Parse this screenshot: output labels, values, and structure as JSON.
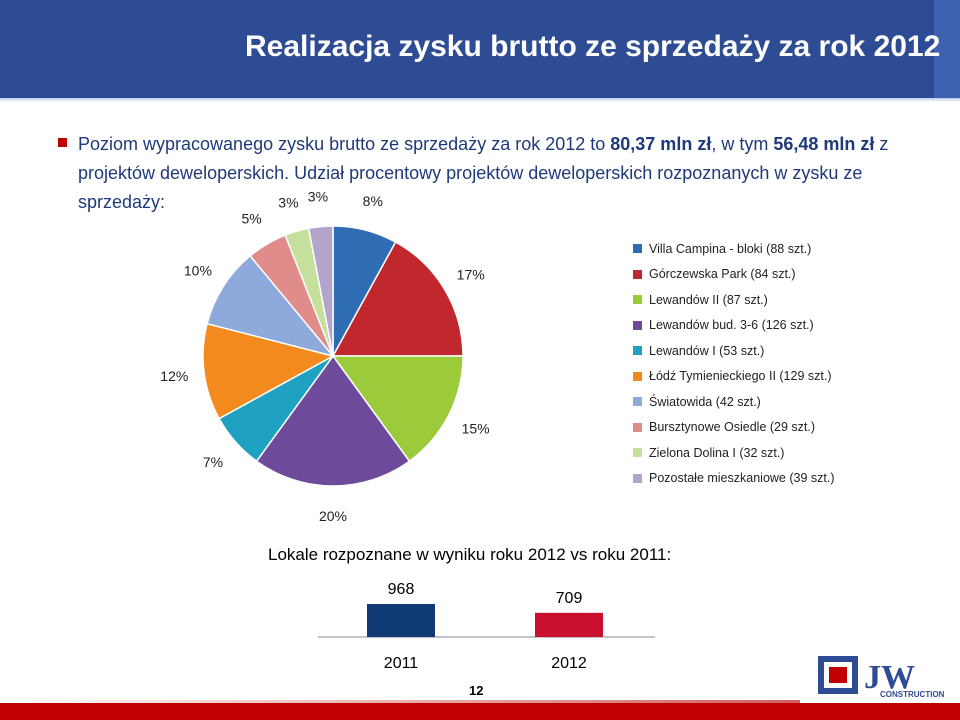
{
  "header": {
    "title": "Realizacja zysku brutto ze sprzedaży za rok 2012"
  },
  "intro": {
    "text_before": "Poziom wypracowanego zysku brutto ze sprzedaży  za rok 2012 to ",
    "bold_1": "80,37 mln zł",
    "text_middle": ", w tym ",
    "bold_2": "56,48 mln zł",
    "text_after": " z projektów deweloperskich. Udział procentowy projektów deweloperskich rozpoznanych w zysku ze sprzedaży:"
  },
  "chart_data": [
    {
      "type": "pie",
      "slices": [
        {
          "label": "Villa Campina - bloki (88 szt.)",
          "value": 8,
          "display": "8%",
          "color": "#2E6DB4"
        },
        {
          "label": "Górczewska Park (84 szt.)",
          "value": 17,
          "display": "17%",
          "color": "#C0282D"
        },
        {
          "label": "Lewandów II (87 szt.)",
          "value": 15,
          "display": "15%",
          "color": "#9BCB3B"
        },
        {
          "label": "Lewandów bud. 3-6 (126 szt.)",
          "value": 20,
          "display": "20%",
          "color": "#6E4A9B"
        },
        {
          "label": "Lewandów I (53 szt.)",
          "value": 7,
          "display": "7%",
          "color": "#1FA2C2"
        },
        {
          "label": "Łódź Tymienieckiego II (129 szt.)",
          "value": 12,
          "display": "12%",
          "color": "#F28A1E"
        },
        {
          "label": "Światowida (42 szt.)",
          "value": 10,
          "display": "10%",
          "color": "#8EA9DB"
        },
        {
          "label": "Bursztynowe Osiedle (29 szt.)",
          "value": 5,
          "display": "5%",
          "color": "#E08C8A"
        },
        {
          "label": "Zielona Dolina I (32 szt.)",
          "value": 3,
          "display": "3%",
          "color": "#C5E09C"
        },
        {
          "label": "Pozostałe mieszkaniowe (39 szt.)",
          "value": 3,
          "display": "3%",
          "color": "#B4A4CC"
        }
      ]
    },
    {
      "type": "bar",
      "title": "Lokale rozpoznane w wyniku roku 2012 vs roku 2011:",
      "categories": [
        "2011",
        "2012"
      ],
      "values": [
        968,
        709
      ],
      "colors": [
        "#0F3A73",
        "#C8102E"
      ]
    }
  ],
  "footer": {
    "page_number": "12",
    "logo_text": "CONSTRUCTION",
    "logo_letters": "JW"
  }
}
